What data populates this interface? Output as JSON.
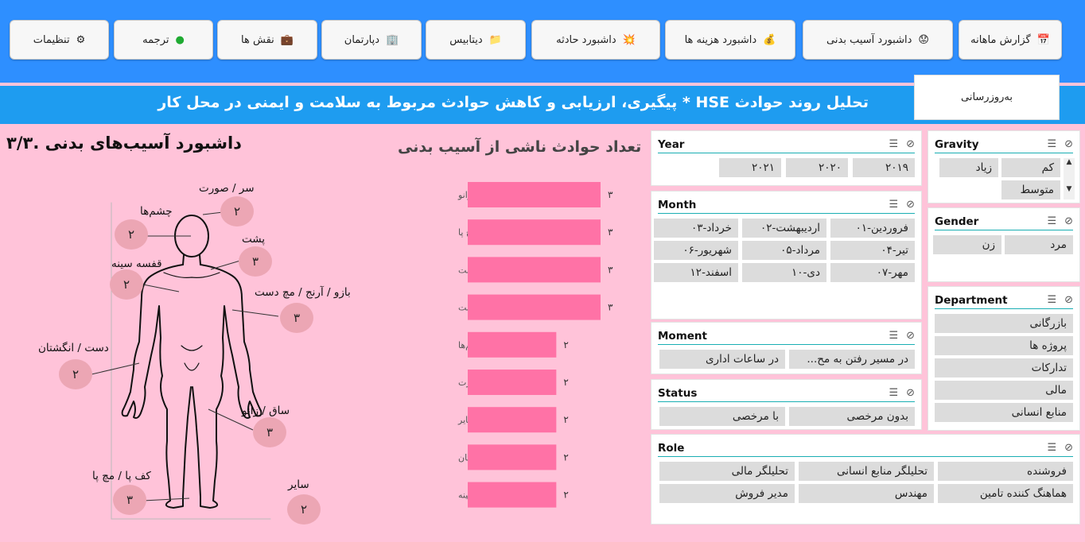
{
  "nav": [
    {
      "label": "گزارش ماهانه",
      "icon": "📅",
      "icon_name": "calendar-icon"
    },
    {
      "label": "داشبورد  آسیب بدنی",
      "icon": "😟",
      "icon_name": "worried-face-icon"
    },
    {
      "label": "داشبورد  هزینه ها",
      "icon": "💰",
      "icon_name": "money-bag-icon"
    },
    {
      "label": "داشبورد  حادثه",
      "icon": "💥",
      "icon_name": "collision-icon"
    },
    {
      "label": "دیتابیس",
      "icon": "📁",
      "icon_name": "folder-icon"
    },
    {
      "label": "دپارتمان",
      "icon": "🏢",
      "icon_name": "building-icon"
    },
    {
      "label": "نقش ها",
      "icon": "💼",
      "icon_name": "briefcase-icon"
    },
    {
      "label": "ترجمه",
      "icon": "●",
      "icon_name": "green-circle-icon"
    },
    {
      "label": "تنظیمات",
      "icon": "⚙",
      "icon_name": "gear-icon"
    }
  ],
  "header": {
    "title": "تحلیل روند حوادث HSE * پیگیری، ارزیابی و کاهش حوادث مربوط به سلامت و ایمنی در محل کار",
    "refresh_label": "به‌روزرسانی"
  },
  "dashboard_title": "داشبورد آسیب‌های بدنی .۳/۳",
  "chart_data": {
    "type": "bar",
    "orientation": "horizontal",
    "title": "تعداد حوادث ناشی از آسیب بدنی",
    "categories": [
      "ساق / زانو",
      "کف پا / مچ پا",
      "پشت",
      "بازو / آرنج / مچ دست",
      "چشم‌ها",
      "سر / صورت",
      "سایر",
      "دست / انگشتان",
      "قفسه سینه"
    ],
    "values": [
      3,
      3,
      3,
      3,
      2,
      2,
      2,
      2,
      2
    ],
    "value_labels": [
      "۳",
      "۳",
      "۳",
      "۳",
      "۲",
      "۲",
      "۲",
      "۲",
      "۲"
    ],
    "xlim": [
      0,
      3
    ],
    "bar_color": "#ff72a6"
  },
  "body_map": {
    "labels": [
      {
        "name": "head",
        "label": "سر / صورت",
        "value": "۲"
      },
      {
        "name": "eyes",
        "label": "چشم‌ها",
        "value": "۲"
      },
      {
        "name": "back",
        "label": "پشت",
        "value": "۳"
      },
      {
        "name": "chest",
        "label": "قفسه سینه",
        "value": "۲"
      },
      {
        "name": "arm",
        "label": "بازو / آرنج / مچ دست",
        "value": "۳"
      },
      {
        "name": "hand",
        "label": "دست / انگشتان",
        "value": "۲"
      },
      {
        "name": "knee",
        "label": "ساق / زانو",
        "value": "۳"
      },
      {
        "name": "foot",
        "label": "کف پا / مچ پا",
        "value": "۳"
      },
      {
        "name": "other",
        "label": "سایر",
        "value": "۲"
      }
    ]
  },
  "slicers": {
    "year": {
      "title": "Year",
      "items": [
        "۲۰۱۹",
        "۲۰۲۰",
        "۲۰۲۱"
      ]
    },
    "gravity": {
      "title": "Gravity",
      "items": [
        "کم",
        "زیاد",
        "متوسط"
      ]
    },
    "month": {
      "title": "Month",
      "items": [
        "فروردین-۰۱",
        "اردیبهشت-۰۲",
        "خرداد-۰۳",
        "تیر-۰۴",
        "مرداد-۰۵",
        "شهریور-۰۶",
        "مهر-۰۷",
        "دی-۱۰",
        "اسفند-۱۲"
      ]
    },
    "gender": {
      "title": "Gender",
      "items": [
        "مرد",
        "زن"
      ]
    },
    "moment": {
      "title": "Moment",
      "items": [
        "در مسیر رفتن به مح...",
        "در ساعات اداری"
      ]
    },
    "department": {
      "title": "Department",
      "items": [
        "بازرگانی",
        "پروژه ها",
        "تدارکات",
        "مالی",
        "منابع انسانی"
      ]
    },
    "status": {
      "title": "Status",
      "items": [
        "بدون مرخصی",
        "با مرخصی"
      ]
    },
    "role": {
      "title": "Role",
      "items": [
        "فروشنده",
        "تحلیلگر منابع انسانی",
        "تحلیلگر مالی",
        "هماهنگ کننده تامین",
        "مهندس",
        "مدیر فروش"
      ]
    }
  }
}
